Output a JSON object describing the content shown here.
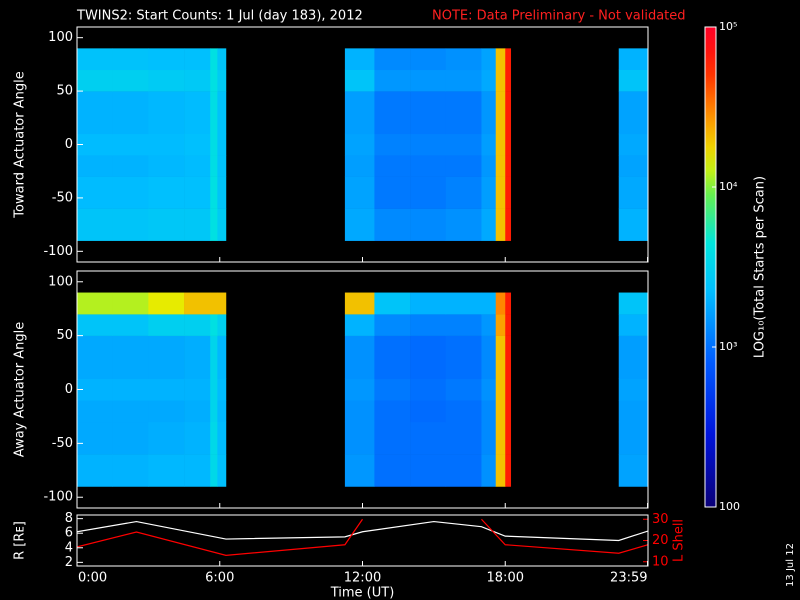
{
  "title": "TWINS2: Start Counts:  1 Jul (day 183), 2012",
  "note": "NOTE: Data Preliminary - Not validated",
  "footer_date": "13 Jul 12",
  "chart_data": [
    {
      "type": "heatmap",
      "y_label": "Toward Actuator Angle",
      "x": [
        0,
        1.5,
        3,
        4.5,
        5.6,
        5.9,
        6.26,
        11.26,
        12.5,
        14,
        15.5,
        17,
        17.6,
        18,
        18.23,
        22.77,
        24
      ],
      "y": [
        -90,
        -60,
        -30,
        -10,
        10,
        50,
        70,
        90
      ],
      "z": [
        [
          2500,
          2500,
          2600,
          2600,
          4000,
          2800,
          null,
          1800,
          1300,
          1300,
          1400,
          1800,
          20000,
          60000,
          null,
          2000
        ],
        [
          2200,
          2200,
          2300,
          2300,
          4000,
          2500,
          null,
          1700,
          1100,
          1100,
          1200,
          1600,
          20000,
          60000,
          null,
          1800
        ],
        [
          2000,
          2000,
          2100,
          2200,
          3800,
          2400,
          null,
          1600,
          1100,
          1100,
          1100,
          1500,
          20000,
          60000,
          null,
          1700
        ],
        [
          2200,
          2200,
          2200,
          2300,
          3800,
          2400,
          null,
          1700,
          1200,
          1200,
          1200,
          1600,
          20000,
          60000,
          null,
          1800
        ],
        [
          2000,
          2000,
          2100,
          2200,
          3800,
          2400,
          null,
          1600,
          1100,
          1100,
          1100,
          1500,
          20000,
          60000,
          null,
          1700
        ],
        [
          3000,
          3000,
          2800,
          2700,
          4000,
          2800,
          null,
          2500,
          1500,
          1500,
          1500,
          1800,
          20000,
          60000,
          null,
          2500
        ],
        [
          2400,
          2400,
          2300,
          2300,
          4000,
          2500,
          null,
          2000,
          1300,
          1300,
          1400,
          1700,
          20000,
          60000,
          null,
          2000
        ]
      ],
      "xlim": [
        0,
        24
      ],
      "ylim": [
        -110,
        110
      ],
      "yticks": [
        -100,
        -50,
        0,
        50,
        100
      ],
      "zlim": [
        100,
        100000
      ],
      "zticks": [
        {
          "value": 100,
          "label": "100"
        },
        {
          "value": 1000,
          "label": "10³"
        },
        {
          "value": 10000,
          "label": "10⁴"
        },
        {
          "value": 100000,
          "label": "10⁵"
        }
      ],
      "colorbar_label": "LOG₁₀(Total Starts per Scan)"
    },
    {
      "type": "heatmap",
      "y_label": "Away Actuator Angle",
      "x": [
        0,
        1.5,
        3,
        4.5,
        5.6,
        5.9,
        6.26,
        11.26,
        12.5,
        14,
        15.5,
        17,
        17.6,
        18,
        18.23,
        22.77,
        24
      ],
      "y": [
        -90,
        -60,
        -30,
        -10,
        10,
        50,
        70,
        90
      ],
      "z": [
        [
          2000,
          2000,
          2100,
          2100,
          3500,
          2300,
          null,
          1500,
          1000,
          1000,
          1000,
          1400,
          20000,
          60000,
          null,
          1700
        ],
        [
          1800,
          1800,
          1900,
          2000,
          3500,
          2200,
          null,
          1400,
          1000,
          1000,
          1000,
          1300,
          20000,
          60000,
          null,
          1600
        ],
        [
          1800,
          1800,
          1800,
          1900,
          3300,
          2100,
          null,
          1400,
          1000,
          950,
          1000,
          1300,
          20000,
          60000,
          null,
          1600
        ],
        [
          2000,
          2000,
          2000,
          2000,
          3300,
          2200,
          null,
          1500,
          1100,
          1000,
          1100,
          1400,
          20000,
          60000,
          null,
          1700
        ],
        [
          1800,
          1800,
          1800,
          1900,
          3300,
          2100,
          null,
          1400,
          1000,
          950,
          1000,
          1300,
          20000,
          60000,
          null,
          1600
        ],
        [
          2500,
          2500,
          3000,
          3000,
          4000,
          3000,
          null,
          2000,
          1300,
          1200,
          1200,
          1500,
          25000,
          60000,
          null,
          2000
        ],
        [
          12000,
          12000,
          15000,
          20000,
          20000,
          20000,
          null,
          20000,
          2500,
          2000,
          2000,
          2000,
          30000,
          60000,
          null,
          2500
        ]
      ],
      "xlim": [
        0,
        24
      ],
      "ylim": [
        -110,
        110
      ],
      "yticks": [
        -100,
        -50,
        0,
        50,
        100
      ]
    },
    {
      "type": "line",
      "x_label": "Time (UT)",
      "y_label": "R [Rᴇ]",
      "y2_label": "L Shell",
      "x": [
        0,
        2.5,
        6.26,
        11.26,
        12,
        15,
        17,
        18,
        22.77,
        24
      ],
      "series": [
        {
          "name": "R",
          "color": "#ffffff",
          "values": [
            6.2,
            7.6,
            5.2,
            5.5,
            6.2,
            7.6,
            6.9,
            5.6,
            5.0,
            6.3
          ]
        },
        {
          "name": "L",
          "color": "#ff0000",
          "axis": "y2",
          "values": [
            17,
            24,
            13,
            18,
            30,
            null,
            30,
            18,
            14,
            18
          ]
        }
      ],
      "xlim": [
        0,
        24
      ],
      "xticks": [
        {
          "value": 0,
          "label": "0:00"
        },
        {
          "value": 6,
          "label": "6:00"
        },
        {
          "value": 12,
          "label": "12:00"
        },
        {
          "value": 18,
          "label": "18:00"
        },
        {
          "value": 23.98,
          "label": "23:59"
        }
      ],
      "ylim": [
        1.5,
        8.5
      ],
      "yticks": [
        2,
        4,
        6,
        8
      ],
      "y2lim": [
        8,
        32
      ],
      "y2ticks": [
        10,
        20,
        30
      ],
      "y2color": "#ff0000"
    }
  ]
}
